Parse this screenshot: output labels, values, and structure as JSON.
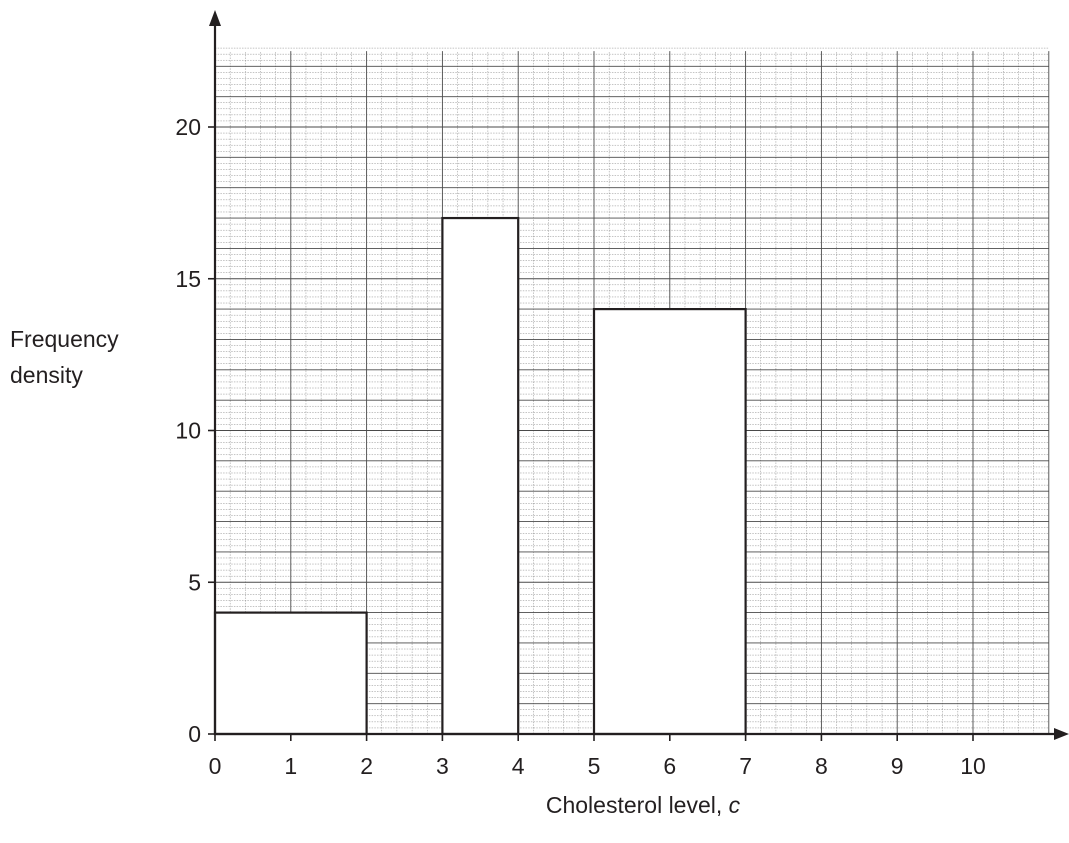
{
  "chart_data": {
    "type": "bar",
    "subtype": "histogram",
    "title": "",
    "xlabel": "Cholesterol level, ",
    "xlabel_var": "c",
    "ylabel_lines": [
      "Frequency",
      "density"
    ],
    "xlim": [
      0,
      11
    ],
    "ylim": [
      0,
      22.5
    ],
    "x_ticks": [
      0,
      1,
      2,
      3,
      4,
      5,
      6,
      7,
      8,
      9,
      10
    ],
    "y_ticks": [
      0,
      5,
      10,
      15,
      20
    ],
    "grid": true,
    "grid_minor_step": 0.2,
    "bars": [
      {
        "x_start": 0,
        "x_end": 2,
        "value": 4
      },
      {
        "x_start": 3,
        "x_end": 4,
        "value": 17
      },
      {
        "x_start": 5,
        "x_end": 7,
        "value": 14
      }
    ],
    "colors": {
      "ink": "#231f20",
      "grid_minor": "#8a8a8a",
      "grid_major": "#4a4a4a",
      "bar_fill": "#ffffff"
    }
  }
}
